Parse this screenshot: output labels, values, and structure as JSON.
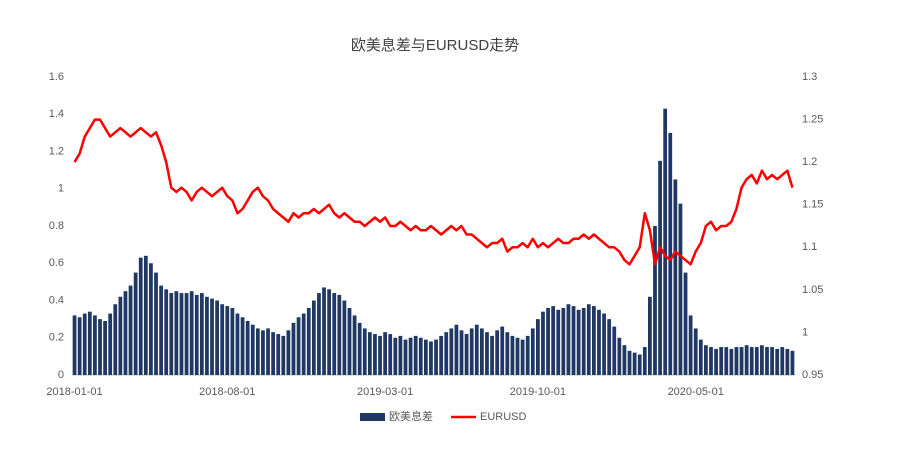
{
  "chart_data": {
    "type": "bar+line",
    "title": "欧美息差与EURUSD走势",
    "categories": [
      "2018-01-01",
      null,
      null,
      null,
      null,
      null,
      null,
      null,
      null,
      null,
      null,
      null,
      null,
      null,
      null,
      null,
      null,
      null,
      null,
      null,
      null,
      null,
      null,
      null,
      null,
      null,
      null,
      null,
      null,
      null,
      "2018-08-01",
      null,
      null,
      null,
      null,
      null,
      null,
      null,
      null,
      null,
      null,
      null,
      null,
      null,
      null,
      null,
      null,
      null,
      null,
      null,
      null,
      null,
      null,
      null,
      null,
      null,
      null,
      null,
      null,
      null,
      null,
      "2019-03-01",
      null,
      null,
      null,
      null,
      null,
      null,
      null,
      null,
      null,
      null,
      null,
      null,
      null,
      null,
      null,
      null,
      null,
      null,
      null,
      null,
      null,
      null,
      null,
      null,
      null,
      null,
      null,
      null,
      null,
      "2019-10-01",
      null,
      null,
      null,
      null,
      null,
      null,
      null,
      null,
      null,
      null,
      null,
      null,
      null,
      null,
      null,
      null,
      null,
      null,
      null,
      null,
      null,
      null,
      null,
      null,
      null,
      null,
      null,
      null,
      null,
      null,
      "2020-05-01",
      null,
      null,
      null,
      null,
      null,
      null,
      null,
      null,
      null,
      null,
      null,
      null,
      null,
      null,
      null,
      null,
      null,
      null,
      null
    ],
    "series": [
      {
        "name": "欧美息差",
        "type": "bar",
        "color": "#1f3864",
        "axis": "y",
        "values": [
          0.32,
          0.31,
          0.33,
          0.34,
          0.32,
          0.3,
          0.29,
          0.33,
          0.38,
          0.42,
          0.45,
          0.48,
          0.55,
          0.63,
          0.64,
          0.6,
          0.55,
          0.48,
          0.46,
          0.44,
          0.45,
          0.44,
          0.44,
          0.45,
          0.43,
          0.44,
          0.42,
          0.41,
          0.4,
          0.38,
          0.37,
          0.36,
          0.33,
          0.31,
          0.29,
          0.27,
          0.25,
          0.24,
          0.25,
          0.23,
          0.22,
          0.21,
          0.24,
          0.28,
          0.31,
          0.33,
          0.36,
          0.4,
          0.44,
          0.47,
          0.46,
          0.44,
          0.43,
          0.4,
          0.36,
          0.32,
          0.28,
          0.25,
          0.23,
          0.22,
          0.21,
          0.23,
          0.22,
          0.2,
          0.21,
          0.19,
          0.2,
          0.21,
          0.2,
          0.19,
          0.18,
          0.19,
          0.21,
          0.23,
          0.25,
          0.27,
          0.24,
          0.22,
          0.25,
          0.27,
          0.25,
          0.23,
          0.21,
          0.24,
          0.26,
          0.23,
          0.21,
          0.2,
          0.19,
          0.21,
          0.25,
          0.3,
          0.34,
          0.36,
          0.37,
          0.35,
          0.36,
          0.38,
          0.37,
          0.35,
          0.36,
          0.38,
          0.37,
          0.35,
          0.33,
          0.3,
          0.26,
          0.2,
          0.16,
          0.13,
          0.12,
          0.11,
          0.15,
          0.42,
          0.8,
          1.15,
          1.43,
          1.3,
          1.05,
          0.92,
          0.55,
          0.32,
          0.25,
          0.19,
          0.16,
          0.15,
          0.14,
          0.15,
          0.15,
          0.14,
          0.15,
          0.15,
          0.16,
          0.15,
          0.15,
          0.16,
          0.15,
          0.15,
          0.14,
          0.15,
          0.14,
          0.13
        ]
      },
      {
        "name": "EURUSD",
        "type": "line",
        "color": "#ff0000",
        "axis": "y2",
        "values": [
          1.2,
          1.21,
          1.23,
          1.24,
          1.25,
          1.25,
          1.24,
          1.23,
          1.235,
          1.24,
          1.235,
          1.23,
          1.235,
          1.24,
          1.235,
          1.23,
          1.235,
          1.22,
          1.2,
          1.17,
          1.165,
          1.17,
          1.165,
          1.155,
          1.165,
          1.17,
          1.165,
          1.16,
          1.165,
          1.17,
          1.16,
          1.155,
          1.14,
          1.145,
          1.155,
          1.165,
          1.17,
          1.16,
          1.155,
          1.145,
          1.14,
          1.135,
          1.13,
          1.14,
          1.135,
          1.14,
          1.14,
          1.145,
          1.14,
          1.145,
          1.15,
          1.14,
          1.135,
          1.14,
          1.135,
          1.13,
          1.13,
          1.125,
          1.13,
          1.135,
          1.13,
          1.135,
          1.125,
          1.125,
          1.13,
          1.125,
          1.12,
          1.125,
          1.12,
          1.12,
          1.125,
          1.12,
          1.115,
          1.12,
          1.125,
          1.12,
          1.125,
          1.115,
          1.115,
          1.11,
          1.105,
          1.1,
          1.105,
          1.105,
          1.11,
          1.095,
          1.1,
          1.1,
          1.105,
          1.1,
          1.11,
          1.1,
          1.105,
          1.1,
          1.105,
          1.11,
          1.105,
          1.105,
          1.11,
          1.11,
          1.115,
          1.11,
          1.115,
          1.11,
          1.105,
          1.1,
          1.1,
          1.095,
          1.085,
          1.08,
          1.09,
          1.1,
          1.14,
          1.12,
          1.08,
          1.1,
          1.09,
          1.085,
          1.095,
          1.09,
          1.085,
          1.08,
          1.095,
          1.105,
          1.125,
          1.13,
          1.12,
          1.125,
          1.125,
          1.13,
          1.145,
          1.17,
          1.18,
          1.185,
          1.175,
          1.19,
          1.18,
          1.185,
          1.18,
          1.185,
          1.19,
          1.17
        ]
      }
    ],
    "ylim": [
      0,
      1.6
    ],
    "yticks": [
      0,
      0.2,
      0.4,
      0.6,
      0.8,
      1,
      1.2,
      1.4,
      1.6
    ],
    "y2lim": [
      0.95,
      1.3
    ],
    "y2ticks": [
      0.95,
      1,
      1.05,
      1.1,
      1.15,
      1.2,
      1.25,
      1.3
    ],
    "grid": false,
    "legend": "bottom"
  }
}
